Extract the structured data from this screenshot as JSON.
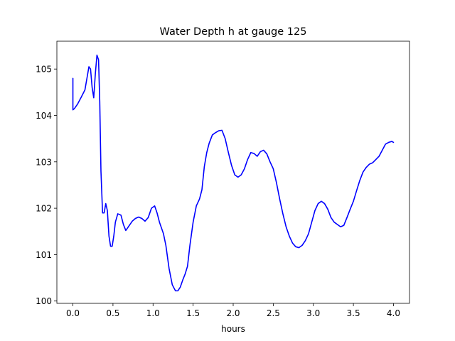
{
  "chart_data": {
    "type": "line",
    "title": "Water Depth h at gauge 125",
    "xlabel": "hours",
    "ylabel": "",
    "xlim": [
      -0.2,
      4.2
    ],
    "ylim": [
      99.95,
      105.6
    ],
    "xticks": [
      0.0,
      0.5,
      1.0,
      1.5,
      2.0,
      2.5,
      3.0,
      3.5,
      4.0
    ],
    "xtick_labels": [
      "0.0",
      "0.5",
      "1.0",
      "1.5",
      "2.0",
      "2.5",
      "3.0",
      "3.5",
      "4.0"
    ],
    "yticks": [
      100,
      101,
      102,
      103,
      104,
      105
    ],
    "ytick_labels": [
      "100",
      "101",
      "102",
      "103",
      "104",
      "105"
    ],
    "grid": false,
    "series": [
      {
        "color": "#0000ff",
        "x": [
          0.0,
          0.0,
          0.0,
          0.02,
          0.06,
          0.1,
          0.15,
          0.18,
          0.2,
          0.22,
          0.24,
          0.26,
          0.28,
          0.3,
          0.32,
          0.335,
          0.35,
          0.37,
          0.39,
          0.41,
          0.43,
          0.45,
          0.47,
          0.49,
          0.51,
          0.53,
          0.56,
          0.6,
          0.63,
          0.66,
          0.7,
          0.74,
          0.78,
          0.82,
          0.86,
          0.9,
          0.94,
          0.98,
          1.02,
          1.05,
          1.08,
          1.1,
          1.13,
          1.16,
          1.2,
          1.24,
          1.28,
          1.31,
          1.34,
          1.37,
          1.4,
          1.43,
          1.46,
          1.5,
          1.54,
          1.58,
          1.61,
          1.64,
          1.67,
          1.7,
          1.74,
          1.78,
          1.82,
          1.86,
          1.9,
          1.94,
          1.98,
          2.02,
          2.06,
          2.1,
          2.14,
          2.18,
          2.22,
          2.26,
          2.3,
          2.34,
          2.38,
          2.42,
          2.46,
          2.5,
          2.54,
          2.58,
          2.62,
          2.66,
          2.7,
          2.74,
          2.78,
          2.82,
          2.86,
          2.9,
          2.94,
          2.98,
          3.02,
          3.06,
          3.1,
          3.14,
          3.18,
          3.22,
          3.26,
          3.3,
          3.34,
          3.38,
          3.42,
          3.46,
          3.5,
          3.54,
          3.58,
          3.62,
          3.66,
          3.7,
          3.74,
          3.78,
          3.82,
          3.86,
          3.9,
          3.94,
          3.98,
          4.0
        ],
        "y": [
          104.8,
          104.14,
          104.12,
          104.15,
          104.25,
          104.38,
          104.55,
          104.85,
          105.05,
          105.0,
          104.6,
          104.38,
          104.9,
          105.3,
          105.2,
          104.3,
          102.8,
          101.9,
          101.9,
          102.1,
          101.95,
          101.4,
          101.18,
          101.18,
          101.4,
          101.7,
          101.88,
          101.85,
          101.65,
          101.52,
          101.62,
          101.72,
          101.78,
          101.81,
          101.78,
          101.72,
          101.8,
          102.0,
          102.05,
          101.9,
          101.7,
          101.6,
          101.45,
          101.2,
          100.7,
          100.35,
          100.22,
          100.22,
          100.3,
          100.45,
          100.58,
          100.75,
          101.2,
          101.7,
          102.05,
          102.2,
          102.4,
          102.9,
          103.2,
          103.4,
          103.58,
          103.63,
          103.67,
          103.68,
          103.5,
          103.2,
          102.92,
          102.72,
          102.67,
          102.72,
          102.85,
          103.05,
          103.2,
          103.18,
          103.12,
          103.22,
          103.25,
          103.17,
          103.0,
          102.85,
          102.55,
          102.2,
          101.88,
          101.6,
          101.4,
          101.25,
          101.17,
          101.15,
          101.2,
          101.3,
          101.45,
          101.7,
          101.95,
          102.1,
          102.15,
          102.1,
          101.98,
          101.8,
          101.7,
          101.65,
          101.6,
          101.63,
          101.8,
          101.98,
          102.15,
          102.38,
          102.6,
          102.78,
          102.88,
          102.95,
          102.98,
          103.05,
          103.12,
          103.25,
          103.38,
          103.42,
          103.44,
          103.42
        ]
      }
    ]
  }
}
